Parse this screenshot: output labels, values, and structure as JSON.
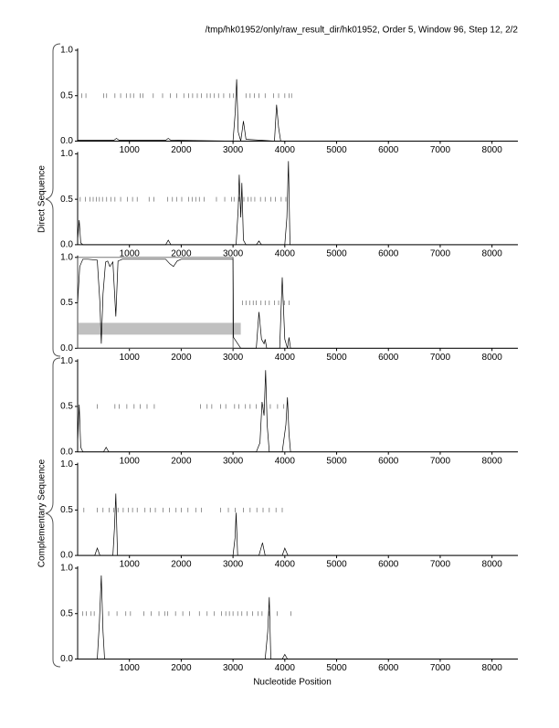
{
  "title": "/tmp/hk01952/only/raw_result_dir/hk01952, Order 5, Window 96, Step 12, 2/2",
  "xlabel": "Nucleotide Position",
  "group_labels": [
    "Direct Sequence",
    "Complementary Sequence"
  ],
  "chart_data": [
    {
      "type": "line",
      "xlim": [
        0,
        8500
      ],
      "ylim": [
        0,
        1
      ],
      "xticks": [
        1000,
        2000,
        3000,
        4000,
        5000,
        6000,
        7000,
        8000
      ],
      "yticks": [
        {
          "value": 0,
          "label": "0.0"
        },
        {
          "value": 0.5,
          "label": "0.5"
        },
        {
          "value": 1,
          "label": "1.0"
        }
      ],
      "x": [
        0,
        700,
        750,
        800,
        1700,
        1750,
        1800,
        3000,
        3040,
        3070,
        3100,
        3150,
        3200,
        3250,
        3800,
        3840,
        3880,
        3920,
        8500
      ],
      "values": [
        0.01,
        0.01,
        0.03,
        0.01,
        0.01,
        0.03,
        0.01,
        0,
        0.3,
        0.68,
        0.1,
        0,
        0.22,
        0.02,
        0,
        0.4,
        0.15,
        0,
        0
      ],
      "marker_y": 0.5,
      "marker_x": [
        80,
        160,
        500,
        560,
        720,
        830,
        940,
        1020,
        1080,
        1210,
        1260,
        1460,
        1640,
        1790,
        1910,
        2050,
        2140,
        2220,
        2310,
        2390,
        2500,
        2560,
        2640,
        2720,
        2820,
        2940,
        3010,
        3250,
        3330,
        3410,
        3500,
        3620,
        3780,
        3880,
        4000,
        4080,
        4130
      ]
    },
    {
      "type": "line",
      "xlim": [
        0,
        8500
      ],
      "ylim": [
        0,
        1
      ],
      "xticks": [
        1000,
        2000,
        3000,
        4000,
        5000,
        6000,
        7000,
        8000
      ],
      "yticks": [
        {
          "value": 0,
          "label": "0.0"
        },
        {
          "value": 0.5,
          "label": "0.5"
        },
        {
          "value": 1,
          "label": "1.0"
        }
      ],
      "x": [
        0,
        30,
        60,
        100,
        1700,
        1750,
        1800,
        3060,
        3100,
        3120,
        3150,
        3170,
        3200,
        3250,
        3450,
        3500,
        3550,
        4000,
        4040,
        4070,
        4100,
        8500
      ],
      "values": [
        0.05,
        0.27,
        0.02,
        0,
        0,
        0.05,
        0,
        0,
        0.4,
        0.77,
        0.3,
        0.68,
        0.05,
        0,
        0,
        0.04,
        0,
        0,
        0.3,
        0.92,
        0,
        0
      ],
      "marker_y": 0.5,
      "marker_x": [
        50,
        150,
        240,
        300,
        360,
        420,
        480,
        560,
        640,
        720,
        830,
        960,
        1060,
        1150,
        1380,
        1470,
        1740,
        1830,
        1910,
        2010,
        2140,
        2210,
        2280,
        2350,
        2440,
        2680,
        2840,
        2970,
        3020,
        3120,
        3210,
        3290,
        3350,
        3420,
        3530,
        3620,
        3730,
        3820,
        3930,
        4020
      ]
    },
    {
      "type": "line",
      "xlim": [
        0,
        8500
      ],
      "ylim": [
        0,
        1
      ],
      "xticks": [
        1000,
        2000,
        3000,
        4000,
        5000,
        6000,
        7000,
        8000
      ],
      "yticks": [
        {
          "value": 0,
          "label": "0.0"
        },
        {
          "value": 0.5,
          "label": "0.5"
        },
        {
          "value": 1,
          "label": "1.0"
        }
      ],
      "x": [
        0,
        40,
        100,
        200,
        380,
        430,
        456,
        490,
        540,
        580,
        620,
        680,
        737,
        780,
        860,
        1700,
        1780,
        1850,
        1920,
        2000,
        3000,
        3010,
        3150,
        3450,
        3500,
        3550,
        3600,
        3620,
        3650,
        3900,
        3950,
        4000,
        4050,
        4080,
        4110,
        8500
      ],
      "values": [
        0.5,
        0.9,
        0.98,
        0.98,
        0.97,
        0.5,
        0.05,
        0.6,
        0.95,
        0.96,
        0.9,
        0.95,
        0.35,
        0.96,
        0.98,
        0.98,
        0.93,
        0.9,
        0.96,
        0.98,
        0.98,
        0.12,
        0,
        0,
        0.4,
        0.1,
        0.05,
        0.1,
        0,
        0,
        0.78,
        0.1,
        0,
        0.12,
        0,
        0
      ],
      "marker_y": 0.5,
      "marker_x": [
        3180,
        3250,
        3320,
        3390,
        3450,
        3540,
        3620,
        3700,
        3800,
        3880,
        3990,
        4080
      ],
      "regions": [
        {
          "x": [
            0,
            3150
          ],
          "y": [
            0.15,
            0.28
          ],
          "color": "#c0c0c0",
          "fill": true
        },
        {
          "x": [
            0,
            3000
          ],
          "y": [
            0,
            1
          ],
          "color": "#555555",
          "fill": false
        }
      ]
    },
    {
      "type": "line",
      "xlim": [
        0,
        8500
      ],
      "ylim": [
        0,
        1
      ],
      "xticks": [
        1000,
        2000,
        3000,
        4000,
        5000,
        6000,
        7000,
        8000
      ],
      "yticks": [
        {
          "value": 0,
          "label": "0.0"
        },
        {
          "value": 0.5,
          "label": "0.5"
        },
        {
          "value": 1,
          "label": "1.0"
        }
      ],
      "x": [
        0,
        30,
        60,
        100,
        500,
        550,
        600,
        3450,
        3520,
        3560,
        3600,
        3630,
        3660,
        3700,
        3950,
        4020,
        4050,
        4080,
        4110,
        8500
      ],
      "values": [
        0.1,
        0.52,
        0.05,
        0,
        0,
        0.05,
        0,
        0,
        0.1,
        0.55,
        0.4,
        0.9,
        0.3,
        0,
        0,
        0.3,
        0.6,
        0.2,
        0,
        0
      ],
      "marker_y": 0.5,
      "marker_x": [
        380,
        720,
        800,
        950,
        1090,
        1210,
        1340,
        1480,
        2370,
        2500,
        2590,
        2760,
        2860,
        3030,
        3110,
        3240,
        3330,
        3450,
        3600,
        3720,
        3860,
        3980
      ]
    },
    {
      "type": "line",
      "xlim": [
        0,
        8500
      ],
      "ylim": [
        0,
        1
      ],
      "xticks": [
        1000,
        2000,
        3000,
        4000,
        5000,
        6000,
        7000,
        8000
      ],
      "yticks": [
        {
          "value": 0,
          "label": "0.0"
        },
        {
          "value": 0.5,
          "label": "0.5"
        },
        {
          "value": 1,
          "label": "1.0"
        }
      ],
      "x": [
        0,
        330,
        380,
        430,
        680,
        710,
        737,
        770,
        3000,
        3040,
        3060,
        3090,
        3500,
        3570,
        3620,
        3950,
        4000,
        4060,
        8500
      ],
      "values": [
        0,
        0,
        0.08,
        0,
        0,
        0.3,
        0.68,
        0,
        0,
        0.2,
        0.47,
        0,
        0,
        0.14,
        0,
        0,
        0.08,
        0,
        0
      ],
      "marker_y": 0.5,
      "marker_x": [
        120,
        380,
        490,
        610,
        700,
        780,
        880,
        980,
        1060,
        1150,
        1300,
        1400,
        1500,
        1650,
        1770,
        1900,
        2000,
        2130,
        2280,
        2390,
        2760,
        2910,
        3040,
        3200,
        3330,
        3460,
        3580,
        3700,
        3830,
        3950
      ]
    },
    {
      "type": "line",
      "xlim": [
        0,
        8500
      ],
      "ylim": [
        0,
        1
      ],
      "xticks": [
        1000,
        2000,
        3000,
        4000,
        5000,
        6000,
        7000,
        8000
      ],
      "yticks": [
        {
          "value": 0,
          "label": "0.0"
        },
        {
          "value": 0.5,
          "label": "0.5"
        },
        {
          "value": 1,
          "label": "1.0"
        }
      ],
      "x": [
        0,
        380,
        420,
        456,
        490,
        520,
        3620,
        3670,
        3700,
        3730,
        3950,
        4000,
        4050,
        8500
      ],
      "values": [
        0,
        0,
        0.4,
        0.92,
        0.3,
        0,
        0,
        0.3,
        0.68,
        0,
        0,
        0.05,
        0,
        0
      ],
      "marker_y": 0.5,
      "marker_x": [
        100,
        170,
        260,
        320,
        600,
        760,
        930,
        1020,
        1280,
        1420,
        1570,
        1680,
        1740,
        1890,
        2030,
        2160,
        2350,
        2500,
        2640,
        2780,
        2860,
        2930,
        3000,
        3090,
        3170,
        3270,
        3380,
        3480,
        3560,
        3700,
        3850,
        4120
      ]
    }
  ]
}
